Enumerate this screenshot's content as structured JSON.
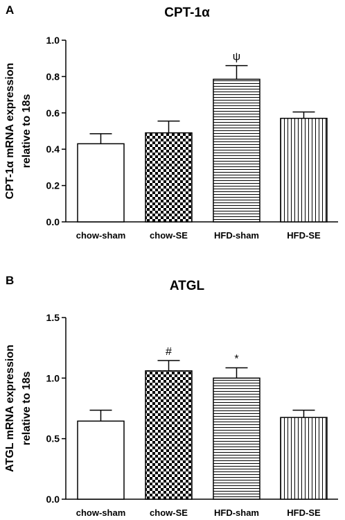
{
  "chart_data": [
    {
      "type": "bar",
      "panel": "A",
      "title": "CPT-1α",
      "ylabel": "CPT-1α mRNA expression relative to 18s",
      "ylabel_lines": [
        "CPT-1α mRNA expression",
        "relative to 18s"
      ],
      "ylim": [
        0,
        1.0
      ],
      "yticks": [
        "0.0",
        "0.2",
        "0.4",
        "0.6",
        "0.8",
        "1.0"
      ],
      "categories": [
        "chow-sham",
        "chow-SE",
        "HFD-sham",
        "HFD-SE"
      ],
      "values": [
        0.43,
        0.49,
        0.785,
        0.57
      ],
      "errors": [
        0.055,
        0.065,
        0.075,
        0.035
      ],
      "patterns": [
        "none",
        "checker",
        "horizontal",
        "vertical"
      ],
      "annotations": [
        "",
        "",
        "ψ",
        ""
      ]
    },
    {
      "type": "bar",
      "panel": "B",
      "title": "ATGL",
      "ylabel": "ATGL mRNA expression relative to 18s",
      "ylabel_lines": [
        "ATGL mRNA expression",
        "relative to 18s"
      ],
      "ylim": [
        0,
        1.5
      ],
      "yticks": [
        "0.0",
        "0.5",
        "1.0",
        "1.5"
      ],
      "categories": [
        "chow-sham",
        "chow-SE",
        "HFD-sham",
        "HFD-SE"
      ],
      "values": [
        0.645,
        1.06,
        1.0,
        0.675
      ],
      "errors": [
        0.09,
        0.085,
        0.085,
        0.06
      ],
      "patterns": [
        "none",
        "checker",
        "horizontal",
        "vertical"
      ],
      "annotations": [
        "",
        "#",
        "*",
        ""
      ]
    }
  ]
}
